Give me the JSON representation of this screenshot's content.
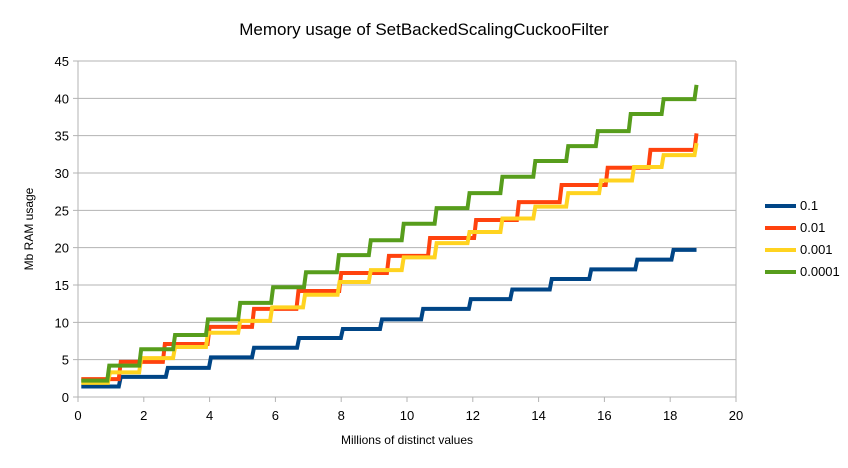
{
  "chart_data": {
    "type": "line",
    "title": "Memory usage of SetBackedScalingCuckooFilter",
    "xlabel": "Millions of distinct values",
    "ylabel": "Mb RAM usage",
    "xlim": [
      0,
      20
    ],
    "ylim": [
      0,
      45
    ],
    "xticks": [
      0,
      2,
      4,
      6,
      8,
      10,
      12,
      14,
      16,
      18,
      20
    ],
    "yticks": [
      0,
      5,
      10,
      15,
      20,
      25,
      30,
      35,
      40,
      45
    ],
    "grid": "horizontal",
    "legend": "right",
    "step": true,
    "series": [
      {
        "name": "0.1",
        "color": "#004586",
        "end_x": 18.8,
        "steps": [
          [
            0.1,
            1.4
          ],
          [
            1.3,
            2.7
          ],
          [
            2.73,
            3.9
          ],
          [
            4.04,
            5.3
          ],
          [
            5.35,
            6.6
          ],
          [
            6.72,
            7.9
          ],
          [
            8.05,
            9.1
          ],
          [
            9.24,
            10.4
          ],
          [
            10.49,
            11.8
          ],
          [
            11.94,
            13.1
          ],
          [
            13.2,
            14.4
          ],
          [
            14.4,
            15.8
          ],
          [
            15.6,
            17.1
          ],
          [
            17.0,
            18.4
          ],
          [
            18.1,
            19.7
          ]
        ]
      },
      {
        "name": "0.01",
        "color": "#ff420e",
        "end_x": 18.8,
        "steps": [
          [
            0.1,
            2.4
          ],
          [
            1.3,
            4.7
          ],
          [
            2.64,
            7.1
          ],
          [
            4.0,
            9.4
          ],
          [
            5.35,
            11.8
          ],
          [
            6.7,
            14.2
          ],
          [
            8.0,
            16.6
          ],
          [
            9.45,
            18.9
          ],
          [
            10.7,
            21.3
          ],
          [
            12.1,
            23.7
          ],
          [
            13.4,
            26.1
          ],
          [
            14.7,
            28.4
          ],
          [
            16.1,
            30.7
          ],
          [
            17.4,
            33.1
          ],
          [
            18.8,
            35.3
          ]
        ]
      },
      {
        "name": "0.001",
        "color": "#ffd320",
        "end_x": 18.8,
        "steps": [
          [
            0.1,
            1.9
          ],
          [
            0.97,
            3.3
          ],
          [
            1.92,
            5.2
          ],
          [
            2.95,
            6.7
          ],
          [
            3.95,
            8.6
          ],
          [
            4.93,
            10.2
          ],
          [
            5.9,
            12.0
          ],
          [
            6.9,
            13.7
          ],
          [
            7.95,
            15.4
          ],
          [
            8.9,
            17.0
          ],
          [
            9.9,
            18.7
          ],
          [
            10.9,
            20.6
          ],
          [
            11.9,
            22.1
          ],
          [
            12.9,
            23.9
          ],
          [
            13.9,
            25.5
          ],
          [
            14.9,
            27.3
          ],
          [
            15.9,
            29.0
          ],
          [
            16.9,
            30.8
          ],
          [
            17.8,
            32.4
          ],
          [
            18.8,
            34.0
          ]
        ]
      },
      {
        "name": "0.0001",
        "color": "#579d1c",
        "end_x": 18.8,
        "steps": [
          [
            0.1,
            2.2
          ],
          [
            0.95,
            4.2
          ],
          [
            1.92,
            6.4
          ],
          [
            2.95,
            8.3
          ],
          [
            3.95,
            10.4
          ],
          [
            4.93,
            12.6
          ],
          [
            5.93,
            14.7
          ],
          [
            6.93,
            16.7
          ],
          [
            7.93,
            19.0
          ],
          [
            8.9,
            21.0
          ],
          [
            9.9,
            23.2
          ],
          [
            10.9,
            25.3
          ],
          [
            11.9,
            27.3
          ],
          [
            12.9,
            29.5
          ],
          [
            13.9,
            31.6
          ],
          [
            14.9,
            33.6
          ],
          [
            15.8,
            35.6
          ],
          [
            16.8,
            37.9
          ],
          [
            17.8,
            39.9
          ],
          [
            18.8,
            41.8
          ]
        ]
      }
    ]
  }
}
